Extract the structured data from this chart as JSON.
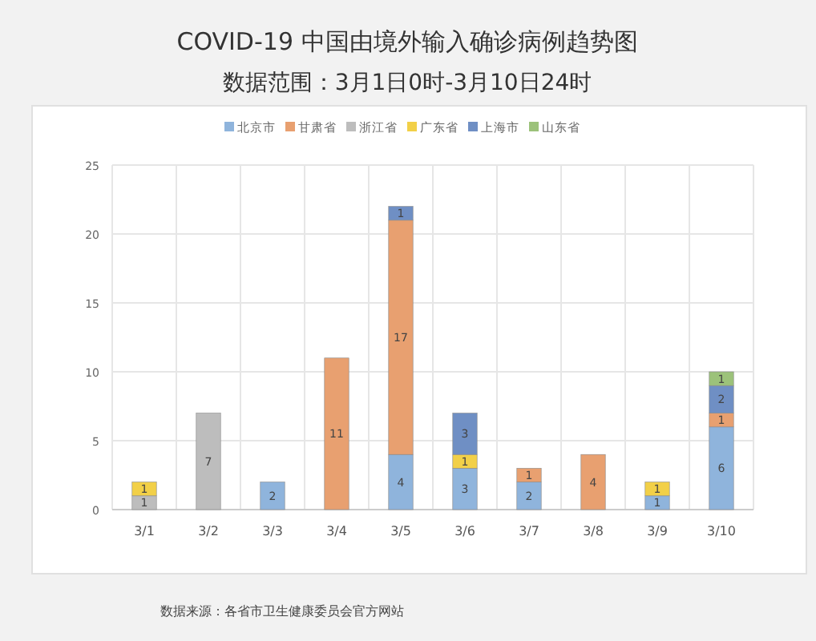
{
  "chart_data": {
    "type": "bar",
    "stacked": true,
    "title": "COVID-19 中国由境外输入确诊病例趋势图",
    "subtitle": "数据范围：3月1日0时-3月10日24时",
    "categories": [
      "3/1",
      "3/2",
      "3/3",
      "3/4",
      "3/5",
      "3/6",
      "3/7",
      "3/8",
      "3/9",
      "3/10"
    ],
    "series": [
      {
        "name": "北京市",
        "color": "#8fb4dc",
        "values": [
          null,
          null,
          2,
          null,
          4,
          3,
          2,
          null,
          1,
          6
        ]
      },
      {
        "name": "甘肃省",
        "color": "#e8a070",
        "values": [
          null,
          null,
          null,
          11,
          17,
          null,
          1,
          4,
          null,
          1
        ]
      },
      {
        "name": "浙江省",
        "color": "#bdbdbd",
        "values": [
          1,
          7,
          null,
          null,
          null,
          null,
          null,
          null,
          null,
          null
        ]
      },
      {
        "name": "广东省",
        "color": "#f2d048",
        "values": [
          1,
          null,
          null,
          null,
          null,
          1,
          null,
          null,
          1,
          null
        ]
      },
      {
        "name": "上海市",
        "color": "#6f8fc4",
        "values": [
          null,
          null,
          null,
          null,
          1,
          3,
          null,
          null,
          null,
          2
        ]
      },
      {
        "name": "山东省",
        "color": "#9cc27a",
        "values": [
          null,
          null,
          null,
          null,
          null,
          null,
          null,
          null,
          null,
          1
        ]
      }
    ],
    "ylim": [
      0,
      25
    ],
    "yticks": [
      0,
      5,
      10,
      15,
      20,
      25
    ],
    "grid": true,
    "legend": "top",
    "data_labels": true,
    "annotations": [
      "数据来源：各省市卫生健康委员会官方网站"
    ]
  }
}
